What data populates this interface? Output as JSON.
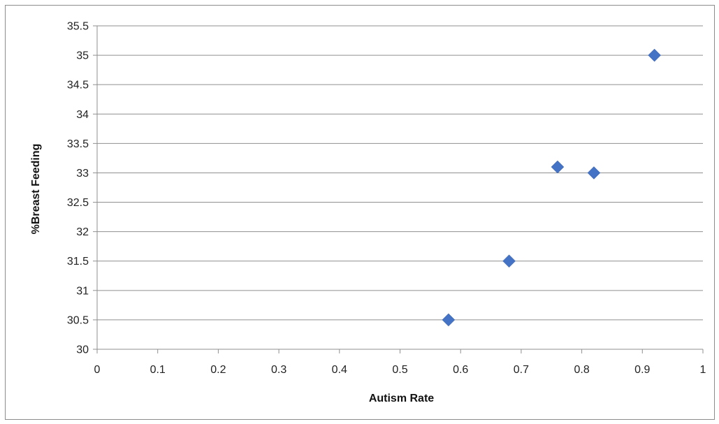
{
  "chart_data": {
    "type": "scatter",
    "title": "",
    "xlabel": "Autism Rate",
    "ylabel": "%Breast Feeding",
    "xlim": [
      0,
      1
    ],
    "ylim": [
      30,
      35.5
    ],
    "x_ticks": [
      "0",
      "0.1",
      "0.2",
      "0.3",
      "0.4",
      "0.5",
      "0.6",
      "0.7",
      "0.8",
      "0.9",
      "1"
    ],
    "y_ticks": [
      "30",
      "30.5",
      "31",
      "31.5",
      "32",
      "32.5",
      "33",
      "33.5",
      "34",
      "34.5",
      "35",
      "35.5"
    ],
    "grid": "horizontal",
    "legend": "none",
    "marker": "diamond",
    "marker_color": "#4472C4",
    "points": [
      {
        "x": 0.58,
        "y": 30.5
      },
      {
        "x": 0.68,
        "y": 31.5
      },
      {
        "x": 0.76,
        "y": 33.1
      },
      {
        "x": 0.82,
        "y": 33.0
      },
      {
        "x": 0.92,
        "y": 35.0
      }
    ]
  }
}
